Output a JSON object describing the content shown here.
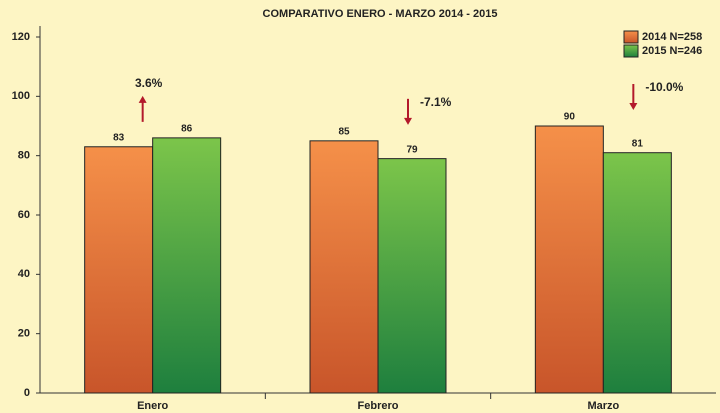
{
  "chart_data": {
    "type": "bar",
    "title": "COMPARATIVO ENERO - MARZO 2014 - 2015",
    "categories": [
      "Enero",
      "Febrero",
      "Marzo"
    ],
    "series": [
      {
        "name": "2014 N=258",
        "color": "#e8743b",
        "values": [
          83,
          85,
          90
        ]
      },
      {
        "name": "2015 N=246",
        "color": "#4caf3c",
        "values": [
          86,
          79,
          81
        ]
      }
    ],
    "ylim": [
      0,
      120
    ],
    "yticks": [
      0,
      20,
      40,
      60,
      80,
      100,
      120
    ],
    "grid": false,
    "legend": "top-right",
    "annotations": [
      {
        "text": "3.6%",
        "direction": "up"
      },
      {
        "text": "-7.1%",
        "direction": "down"
      },
      {
        "text": "-10.0%",
        "direction": "down"
      }
    ]
  }
}
